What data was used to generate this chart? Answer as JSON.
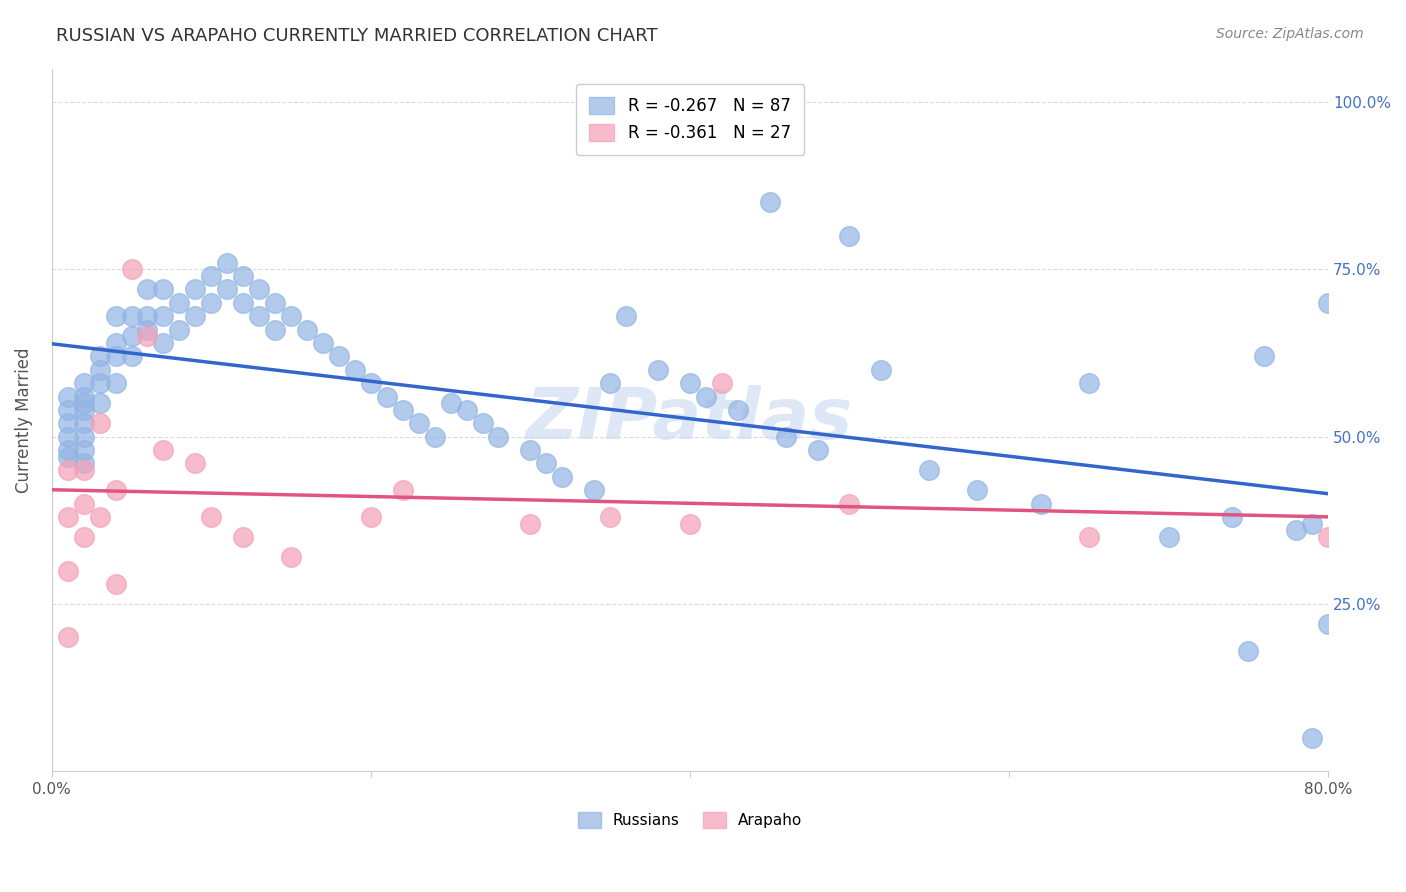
{
  "title": "RUSSIAN VS ARAPAHO CURRENTLY MARRIED CORRELATION CHART",
  "source": "Source: ZipAtlas.com",
  "ylabel": "Currently Married",
  "watermark": "ZIPatlas",
  "x_min": 0.0,
  "x_max": 0.8,
  "y_min": 0.0,
  "y_max": 1.05,
  "russian_R": "-0.267",
  "russian_N": "87",
  "arapaho_R": "-0.361",
  "arapaho_N": "27",
  "russian_color": "#92b4e3",
  "arapaho_color": "#f4a0b5",
  "line_russian_color": "#3366cc",
  "line_arapaho_color": "#e05580",
  "background_color": "#ffffff",
  "grid_color": "#cccccc",
  "title_color": "#333333",
  "right_tick_color": "#4472c4",
  "watermark_color": "#c8d8f0",
  "russian_points_x": [
    0.01,
    0.01,
    0.01,
    0.01,
    0.01,
    0.01,
    0.02,
    0.02,
    0.02,
    0.02,
    0.02,
    0.02,
    0.02,
    0.02,
    0.03,
    0.03,
    0.03,
    0.03,
    0.04,
    0.04,
    0.04,
    0.04,
    0.05,
    0.05,
    0.05,
    0.06,
    0.06,
    0.06,
    0.07,
    0.07,
    0.07,
    0.08,
    0.08,
    0.09,
    0.09,
    0.1,
    0.1,
    0.11,
    0.11,
    0.12,
    0.12,
    0.13,
    0.13,
    0.14,
    0.14,
    0.15,
    0.16,
    0.17,
    0.18,
    0.19,
    0.2,
    0.21,
    0.22,
    0.23,
    0.24,
    0.25,
    0.26,
    0.27,
    0.28,
    0.3,
    0.31,
    0.32,
    0.34,
    0.35,
    0.36,
    0.38,
    0.4,
    0.41,
    0.43,
    0.45,
    0.46,
    0.48,
    0.5,
    0.52,
    0.55,
    0.58,
    0.62,
    0.65,
    0.7,
    0.74,
    0.75,
    0.76,
    0.78,
    0.79,
    0.79,
    0.8,
    0.8
  ],
  "russian_points_y": [
    0.47,
    0.5,
    0.52,
    0.54,
    0.56,
    0.48,
    0.55,
    0.52,
    0.56,
    0.58,
    0.54,
    0.5,
    0.48,
    0.46,
    0.6,
    0.62,
    0.58,
    0.55,
    0.64,
    0.68,
    0.62,
    0.58,
    0.65,
    0.68,
    0.62,
    0.68,
    0.72,
    0.66,
    0.72,
    0.68,
    0.64,
    0.7,
    0.66,
    0.72,
    0.68,
    0.74,
    0.7,
    0.76,
    0.72,
    0.74,
    0.7,
    0.72,
    0.68,
    0.7,
    0.66,
    0.68,
    0.66,
    0.64,
    0.62,
    0.6,
    0.58,
    0.56,
    0.54,
    0.52,
    0.5,
    0.55,
    0.54,
    0.52,
    0.5,
    0.48,
    0.46,
    0.44,
    0.42,
    0.58,
    0.68,
    0.6,
    0.58,
    0.56,
    0.54,
    0.85,
    0.5,
    0.48,
    0.8,
    0.6,
    0.45,
    0.42,
    0.4,
    0.58,
    0.35,
    0.38,
    0.18,
    0.62,
    0.36,
    0.37,
    0.05,
    0.22,
    0.7
  ],
  "arapaho_points_x": [
    0.01,
    0.01,
    0.01,
    0.01,
    0.02,
    0.02,
    0.02,
    0.03,
    0.03,
    0.04,
    0.04,
    0.05,
    0.06,
    0.07,
    0.09,
    0.1,
    0.12,
    0.15,
    0.2,
    0.22,
    0.3,
    0.35,
    0.4,
    0.42,
    0.5,
    0.65,
    0.8
  ],
  "arapaho_points_y": [
    0.45,
    0.38,
    0.3,
    0.2,
    0.45,
    0.4,
    0.35,
    0.52,
    0.38,
    0.42,
    0.28,
    0.75,
    0.65,
    0.48,
    0.46,
    0.38,
    0.35,
    0.32,
    0.38,
    0.42,
    0.37,
    0.38,
    0.37,
    0.58,
    0.4,
    0.35,
    0.35
  ],
  "legend_russian_label": "Russians",
  "legend_arapaho_label": "Arapaho"
}
